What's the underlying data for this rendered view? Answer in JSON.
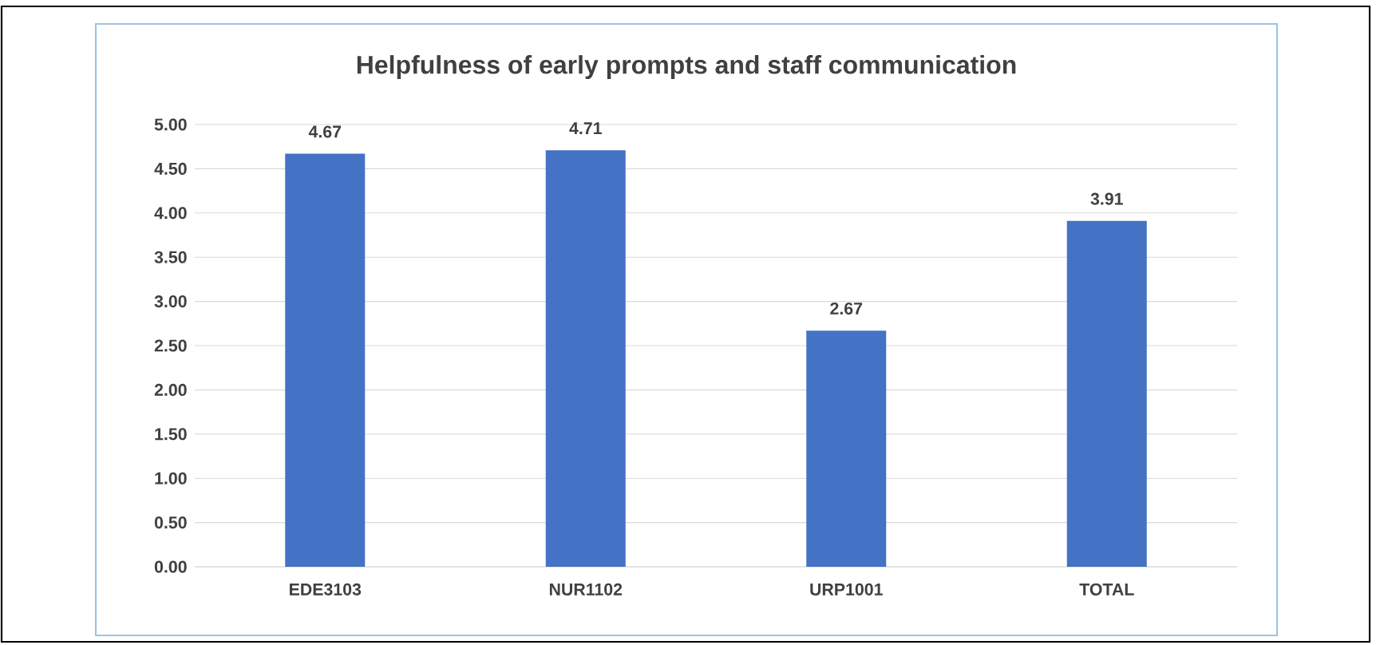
{
  "chart_data": {
    "type": "bar",
    "title": "Helpfulness of early prompts and staff communication",
    "categories": [
      "EDE3103",
      "NUR1102",
      "URP1001",
      "TOTAL"
    ],
    "values": [
      4.67,
      4.71,
      2.67,
      3.91
    ],
    "value_labels": [
      "4.67",
      "4.71",
      "2.67",
      "3.91"
    ],
    "color": "#4472c4",
    "ylim": [
      0,
      5
    ],
    "yticks": [
      {
        "value": 0,
        "label": "0.00"
      },
      {
        "value": 0.5,
        "label": "0.50"
      },
      {
        "value": 1,
        "label": "1.00"
      },
      {
        "value": 1.5,
        "label": "1.50"
      },
      {
        "value": 2,
        "label": "2.00"
      },
      {
        "value": 2.5,
        "label": "2.50"
      },
      {
        "value": 3,
        "label": "3.00"
      },
      {
        "value": 3.5,
        "label": "3.50"
      },
      {
        "value": 4,
        "label": "4.00"
      },
      {
        "value": 4.5,
        "label": "4.50"
      },
      {
        "value": 5,
        "label": "5.00"
      }
    ],
    "grid": "y"
  }
}
